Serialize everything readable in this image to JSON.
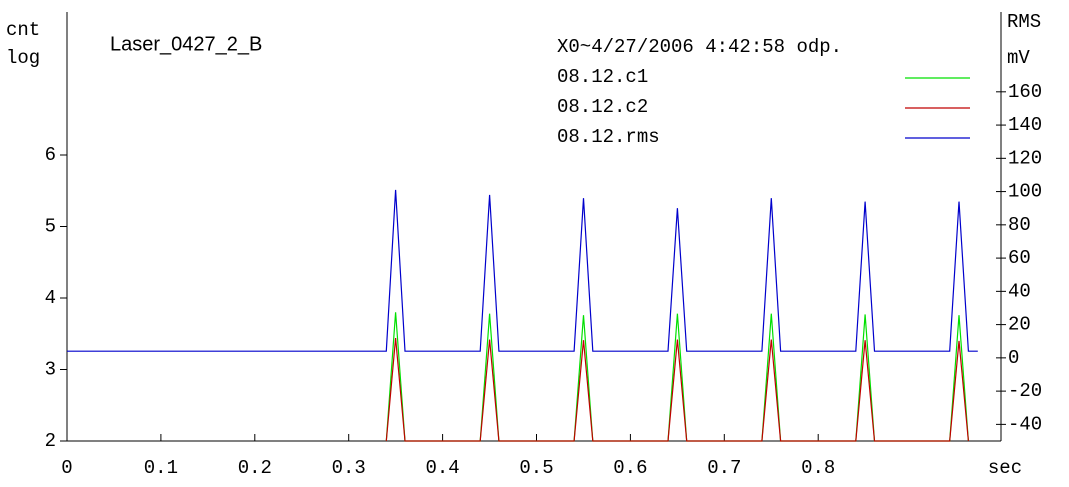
{
  "chart_data": {
    "type": "line",
    "title": "Laser_0427_2_B",
    "legend_title": "X0~4/27/2006 4:42:58 odp.",
    "ylabel": [
      "cnt",
      "log"
    ],
    "y2label": [
      "RMS",
      "mV"
    ],
    "xlabel": "sec",
    "x": [
      0,
      0.34,
      0.35,
      0.36,
      0.44,
      0.45,
      0.46,
      0.54,
      0.55,
      0.56,
      0.64,
      0.65,
      0.66,
      0.74,
      0.75,
      0.76,
      0.84,
      0.85,
      0.86,
      0.94,
      0.95,
      0.96,
      0.97
    ],
    "series": [
      {
        "name": "08.12.c1",
        "color": "#00e000",
        "values": [
          null,
          2,
          3.8,
          2,
          2,
          3.78,
          2,
          2,
          3.76,
          2,
          2,
          3.78,
          2,
          2,
          3.78,
          2,
          2,
          3.77,
          2,
          2,
          3.76,
          2,
          null
        ]
      },
      {
        "name": "08.12.c2",
        "color": "#c00000",
        "values": [
          null,
          2,
          3.44,
          2,
          2,
          3.42,
          2,
          2,
          3.41,
          2,
          2,
          3.42,
          2,
          2,
          3.42,
          2,
          2,
          3.41,
          2,
          2,
          3.4,
          2,
          null
        ]
      },
      {
        "name": "08.12.rms",
        "color": "#0000cc",
        "axis": "y2",
        "values": [
          4,
          4,
          101,
          4,
          4,
          98,
          4,
          4,
          96,
          4,
          4,
          90,
          4,
          4,
          96,
          4,
          4,
          94,
          4,
          4,
          94,
          4,
          4
        ]
      }
    ],
    "xlim": [
      0,
      1
    ],
    "xticks": [
      0,
      0.1,
      0.2,
      0.3,
      0.4,
      0.5,
      0.6,
      0.7,
      0.8
    ],
    "ylim": [
      2,
      8
    ],
    "yticks": [
      2,
      3,
      4,
      5,
      6
    ],
    "y2lim": [
      -50,
      208
    ],
    "y2ticks": [
      -40,
      -20,
      0,
      20,
      40,
      60,
      80,
      100,
      120,
      140,
      160
    ]
  }
}
